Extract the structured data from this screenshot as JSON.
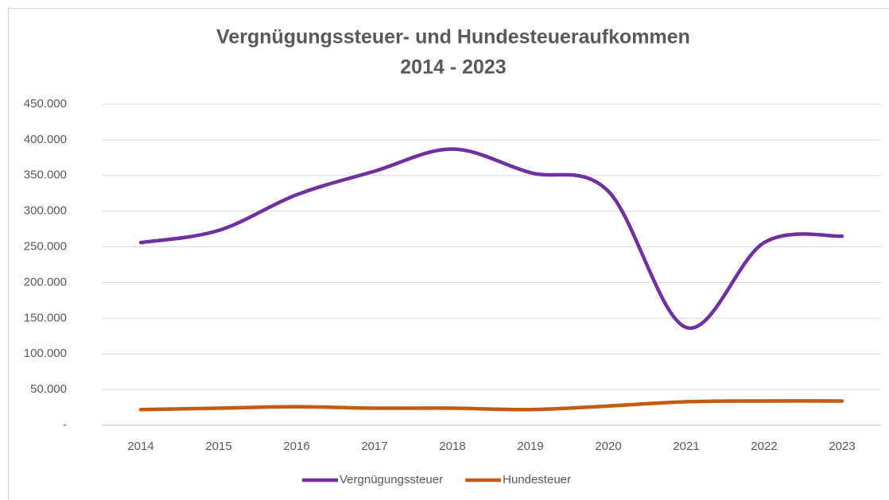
{
  "chart_data": {
    "type": "line",
    "title": "Vergnügungssteuer- und Hundesteueraufkommen",
    "subtitle": "2014 - 2023",
    "categories": [
      "2014",
      "2015",
      "2016",
      "2017",
      "2018",
      "2019",
      "2020",
      "2021",
      "2022",
      "2023"
    ],
    "series": [
      {
        "name": "Vergnügungssteuer",
        "color": "#7030a0",
        "values": [
          256000,
          273000,
          323000,
          356000,
          387000,
          354000,
          328000,
          137000,
          256000,
          265000
        ]
      },
      {
        "name": "Hundesteuer",
        "color": "#c55a11",
        "values": [
          22000,
          24000,
          26000,
          24000,
          24000,
          22000,
          27000,
          33000,
          34000,
          34000
        ]
      }
    ],
    "ylim": [
      0,
      450000
    ],
    "yticks": [
      {
        "value": 0,
        "label": "-"
      },
      {
        "value": 50000,
        "label": "50.000"
      },
      {
        "value": 100000,
        "label": "100.000"
      },
      {
        "value": 150000,
        "label": "150.000"
      },
      {
        "value": 200000,
        "label": "200.000"
      },
      {
        "value": 250000,
        "label": "250.000"
      },
      {
        "value": 300000,
        "label": "300.000"
      },
      {
        "value": 350000,
        "label": "350.000"
      },
      {
        "value": 400000,
        "label": "400.000"
      },
      {
        "value": 450000,
        "label": "450.000"
      }
    ],
    "grid": true,
    "smooth": true,
    "legend": "bottom"
  }
}
